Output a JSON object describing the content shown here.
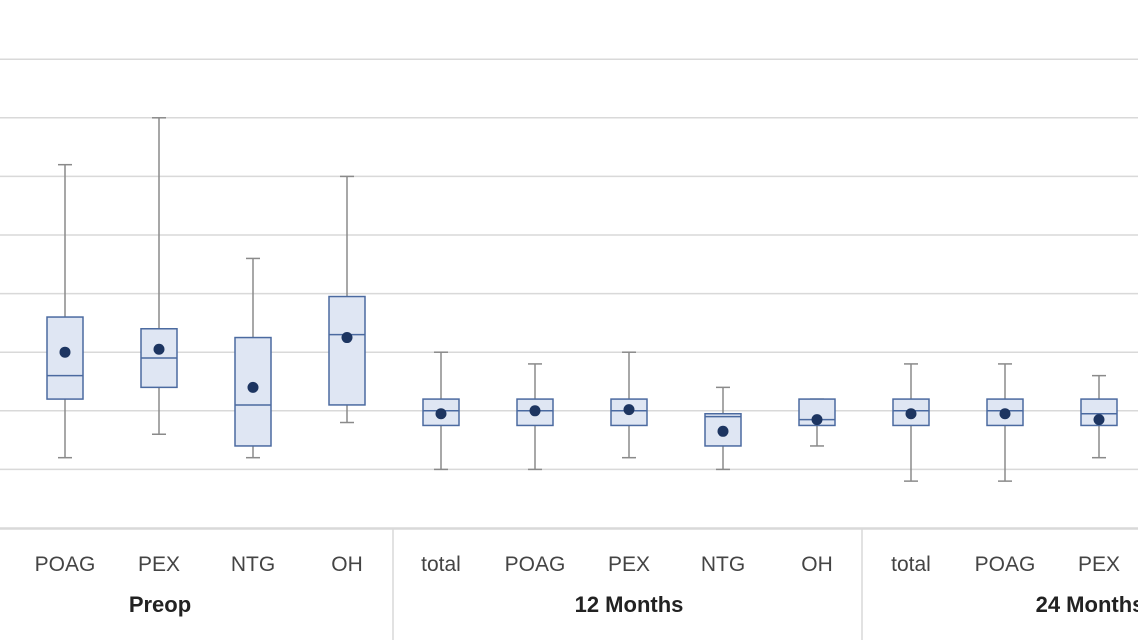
{
  "chart_data": {
    "type": "boxplot",
    "title": "",
    "xlabel": "",
    "ylabel": "",
    "ylim": [
      0,
      8
    ],
    "grid": true,
    "colors": {
      "box_fill": "#dfe6f3",
      "box_stroke": "#4b6aa0",
      "mean_dot": "#1d3561",
      "gridline": "#d9d9d9",
      "whisker": "#8a8a8a"
    },
    "categories": [
      "POAG",
      "PEX",
      "NTG",
      "OH",
      "total",
      "POAG",
      "PEX",
      "NTG",
      "OH",
      "total",
      "POAG",
      "PEX"
    ],
    "groups": [
      {
        "label": "Preop",
        "categories": [
          "POAG",
          "PEX",
          "NTG",
          "OH"
        ]
      },
      {
        "label": "12 Months",
        "categories": [
          "total",
          "POAG",
          "PEX",
          "NTG",
          "OH"
        ]
      },
      {
        "label": "24 Months",
        "categories": [
          "total",
          "POAG",
          "PEX"
        ]
      }
    ],
    "boxes": [
      {
        "category": "POAG",
        "group": "Preop",
        "min": 1.2,
        "q1": 2.2,
        "median": 2.6,
        "q3": 3.6,
        "max": 6.2,
        "mean": 3.0
      },
      {
        "category": "PEX",
        "group": "Preop",
        "min": 1.6,
        "q1": 2.4,
        "median": 2.9,
        "q3": 3.4,
        "max": 7.0,
        "mean": 3.05
      },
      {
        "category": "NTG",
        "group": "Preop",
        "min": 1.2,
        "q1": 1.4,
        "median": 2.1,
        "q3": 3.25,
        "max": 4.6,
        "mean": 2.4
      },
      {
        "category": "OH",
        "group": "Preop",
        "min": 1.8,
        "q1": 2.1,
        "median": 3.3,
        "q3": 3.95,
        "max": 6.0,
        "mean": 3.25
      },
      {
        "category": "total",
        "group": "12 Months",
        "min": 1.0,
        "q1": 1.75,
        "median": 2.0,
        "q3": 2.2,
        "max": 3.0,
        "mean": 1.95
      },
      {
        "category": "POAG",
        "group": "12 Months",
        "min": 1.0,
        "q1": 1.75,
        "median": 2.0,
        "q3": 2.2,
        "max": 2.8,
        "mean": 2.0
      },
      {
        "category": "PEX",
        "group": "12 Months",
        "min": 1.2,
        "q1": 1.75,
        "median": 2.0,
        "q3": 2.2,
        "max": 3.0,
        "mean": 2.02
      },
      {
        "category": "NTG",
        "group": "12 Months",
        "min": 1.0,
        "q1": 1.4,
        "median": 1.9,
        "q3": 1.95,
        "max": 2.4,
        "mean": 1.65
      },
      {
        "category": "OH",
        "group": "12 Months",
        "min": 1.4,
        "q1": 1.75,
        "median": 1.85,
        "q3": 2.2,
        "max": 2.2,
        "mean": 1.85
      },
      {
        "category": "total",
        "group": "24 Months",
        "min": 0.8,
        "q1": 1.75,
        "median": 2.0,
        "q3": 2.2,
        "max": 2.8,
        "mean": 1.95
      },
      {
        "category": "POAG",
        "group": "24 Months",
        "min": 0.8,
        "q1": 1.75,
        "median": 2.0,
        "q3": 2.2,
        "max": 2.8,
        "mean": 1.95
      },
      {
        "category": "PEX",
        "group": "24 Months",
        "min": 1.2,
        "q1": 1.75,
        "median": 1.95,
        "q3": 2.2,
        "max": 2.6,
        "mean": 1.85
      }
    ]
  }
}
